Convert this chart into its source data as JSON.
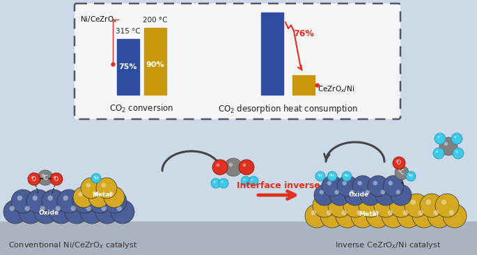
{
  "background_color": "#ccdae8",
  "box_facecolor": "#f5f5f5",
  "bar1_color": "#2e4d9e",
  "bar2_color": "#c9970c",
  "bar_conv_pct1": "75%",
  "bar_conv_pct2": "90%",
  "bar_des_pct": "76%",
  "temp1": "315 °C",
  "temp2": "200 °C",
  "xlabel_conv": "CO$_2$ conversion",
  "xlabel_des": "CO$_2$ desorption heat consumption",
  "label_ni": "Ni/CeZrO$_x$",
  "label_ce": "CeZrO$_x$/Ni",
  "label_conventional": "Conventional Ni/CeZrO$_x$ catalyst",
  "label_inverse": "Inverse CeZrO$_x$/Ni catalyst",
  "interface_text": "Interface inverse",
  "red_color": "#e03020",
  "bottom_bg": "#aab4c0",
  "oxide_color": "#4a5e9a",
  "metal_color": "#d4a820",
  "carbon_color": "#808080",
  "oxygen_color": "#e03020",
  "hydrogen_color": "#40c8e8",
  "arrow_color": "#444444"
}
